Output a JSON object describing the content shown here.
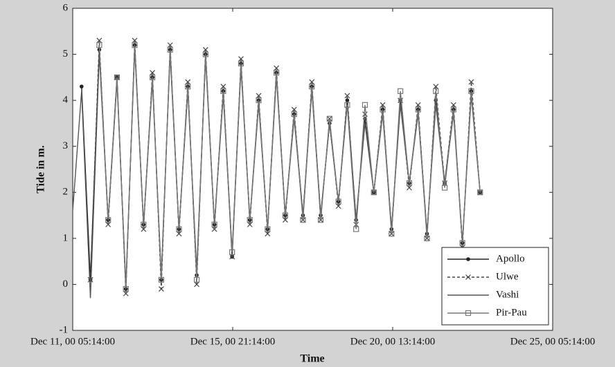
{
  "chart_data": {
    "type": "line",
    "x_label": "Time",
    "y_label": "Tide in m.",
    "xlim": [
      "2000-12-11T05:14:00",
      "2000-12-25T05:14:00"
    ],
    "xticks": [
      {
        "value": "2000-12-11T05:14:00",
        "label": "Dec 11, 00 05:14:00"
      },
      {
        "value": "2000-12-15T21:14:00",
        "label": "Dec 15, 00 21:14:00"
      },
      {
        "value": "2000-12-20T13:14:00",
        "label": "Dec 20, 00 13:14:00"
      },
      {
        "value": "2000-12-25T05:14:00",
        "label": "Dec 25, 00 05:14:00"
      }
    ],
    "ylim": [
      -1,
      6
    ],
    "yticks": [
      -1,
      0,
      1,
      2,
      3,
      4,
      5,
      6
    ],
    "legend": "lower right",
    "x": [
      "2000-12-11T05:14:00",
      "2000-12-11T11:26:00",
      "2000-12-11T17:38:00",
      "2000-12-11T23:50:00",
      "2000-12-12T06:02:00",
      "2000-12-12T12:14:00",
      "2000-12-12T18:26:00",
      "2000-12-13T00:38:00",
      "2000-12-13T06:50:00",
      "2000-12-13T13:02:00",
      "2000-12-13T19:14:00",
      "2000-12-14T01:26:00",
      "2000-12-14T07:38:00",
      "2000-12-14T13:50:00",
      "2000-12-14T20:02:00",
      "2000-12-15T02:14:00",
      "2000-12-15T08:26:00",
      "2000-12-15T14:38:00",
      "2000-12-15T20:50:00",
      "2000-12-16T03:02:00",
      "2000-12-16T09:14:00",
      "2000-12-16T15:26:00",
      "2000-12-16T21:38:00",
      "2000-12-17T03:50:00",
      "2000-12-17T10:02:00",
      "2000-12-17T16:14:00",
      "2000-12-17T22:26:00",
      "2000-12-18T04:38:00",
      "2000-12-18T10:50:00",
      "2000-12-18T17:02:00",
      "2000-12-18T23:14:00",
      "2000-12-19T05:26:00",
      "2000-12-19T11:38:00",
      "2000-12-19T17:50:00",
      "2000-12-20T00:02:00",
      "2000-12-20T06:14:00",
      "2000-12-20T12:26:00",
      "2000-12-20T18:38:00",
      "2000-12-21T00:50:00",
      "2000-12-21T07:02:00",
      "2000-12-21T13:14:00",
      "2000-12-21T19:26:00",
      "2000-12-22T01:38:00",
      "2000-12-22T07:50:00",
      "2000-12-22T14:02:00",
      "2000-12-22T20:14:00",
      "2000-12-23T02:26:00"
    ],
    "series": [
      {
        "name": "Apollo",
        "color": "#222222",
        "marker": "dot",
        "dash": false,
        "values": [
          null,
          4.3,
          0.1,
          5.1,
          1.4,
          4.5,
          -0.1,
          5.2,
          1.3,
          4.5,
          0.1,
          5.1,
          1.2,
          4.3,
          0.2,
          5.0,
          1.3,
          4.2,
          0.6,
          4.8,
          1.4,
          4.0,
          1.2,
          4.6,
          1.5,
          3.7,
          1.5,
          4.3,
          1.5,
          3.5,
          1.8,
          4.0,
          1.4,
          3.6,
          2.0,
          3.8,
          1.2,
          4.0,
          2.2,
          3.8,
          1.1,
          4.0,
          2.2,
          3.8,
          0.9,
          4.2,
          2.0
        ]
      },
      {
        "name": "Ulwe",
        "color": "#444444",
        "marker": "x",
        "dash": true,
        "values": [
          null,
          null,
          0.1,
          5.3,
          1.3,
          4.5,
          -0.2,
          5.3,
          1.2,
          4.6,
          -0.1,
          5.2,
          1.1,
          4.4,
          0.0,
          5.1,
          1.2,
          4.3,
          0.6,
          4.9,
          1.3,
          4.1,
          1.1,
          4.7,
          1.4,
          3.8,
          1.4,
          4.4,
          1.4,
          3.6,
          1.7,
          4.1,
          1.3,
          3.7,
          2.0,
          3.9,
          1.1,
          4.0,
          2.1,
          3.9,
          1.0,
          4.3,
          2.2,
          3.9,
          0.8,
          4.4,
          2.0
        ]
      },
      {
        "name": "Vashi",
        "color": "#555555",
        "marker": "none",
        "dash": false,
        "values": [
          1.6,
          4.2,
          -0.3,
          5.0,
          1.4,
          4.4,
          0.0,
          5.1,
          1.3,
          4.4,
          0.2,
          5.0,
          1.2,
          4.2,
          0.3,
          4.9,
          1.3,
          4.1,
          0.7,
          4.7,
          1.4,
          3.9,
          1.2,
          4.5,
          1.5,
          3.6,
          1.5,
          4.2,
          1.5,
          3.5,
          1.8,
          3.9,
          1.4,
          3.5,
          2.0,
          3.7,
          1.2,
          3.9,
          2.2,
          3.7,
          1.1,
          3.9,
          2.2,
          3.7,
          0.9,
          4.1,
          2.0
        ]
      },
      {
        "name": "Pir-Pau",
        "color": "#777777",
        "marker": "square",
        "dash": false,
        "values": [
          null,
          null,
          null,
          5.2,
          1.4,
          4.5,
          -0.1,
          5.2,
          1.3,
          4.5,
          0.1,
          5.1,
          1.2,
          4.3,
          0.1,
          5.0,
          1.3,
          4.2,
          0.7,
          4.8,
          1.4,
          4.0,
          1.2,
          4.6,
          1.5,
          3.7,
          1.4,
          4.3,
          1.4,
          3.6,
          1.8,
          3.9,
          1.2,
          3.9,
          2.0,
          3.8,
          1.1,
          4.2,
          2.2,
          3.8,
          1.0,
          4.2,
          2.1,
          3.8,
          0.9,
          4.2,
          2.0
        ]
      }
    ]
  }
}
